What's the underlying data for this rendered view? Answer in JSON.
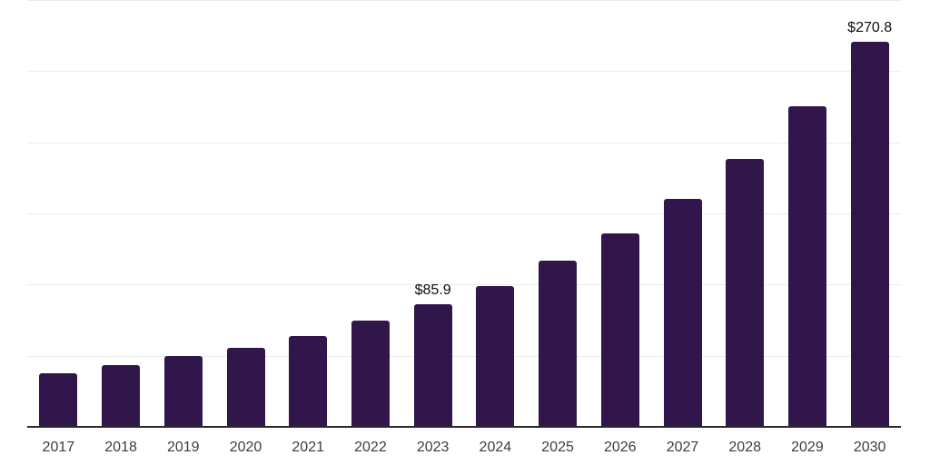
{
  "chart_data": {
    "type": "bar",
    "title": "",
    "xlabel": "",
    "ylabel": "",
    "categories": [
      "2017",
      "2018",
      "2019",
      "2020",
      "2021",
      "2022",
      "2023",
      "2024",
      "2025",
      "2026",
      "2027",
      "2028",
      "2029",
      "2030"
    ],
    "values": [
      37.7,
      43.4,
      49.9,
      55.6,
      64.1,
      74.6,
      85.9,
      99.0,
      116.5,
      136.0,
      160.0,
      188.6,
      225.6,
      270.8
    ],
    "ylim": [
      0,
      300
    ],
    "gridline_step": 50,
    "grid": true,
    "legend": false,
    "y_tick_labels_visible": false,
    "data_labels": [
      {
        "category": "2023",
        "text": "$85.9"
      },
      {
        "category": "2030",
        "text": "$270.8"
      }
    ]
  },
  "colors": {
    "background": "#ffffff",
    "bar": "#30164a",
    "gridline": "#ebebeb",
    "axis_line": "#2a2a2a",
    "tick_label": "#3c3c3c",
    "data_label": "#0d0d0d"
  }
}
